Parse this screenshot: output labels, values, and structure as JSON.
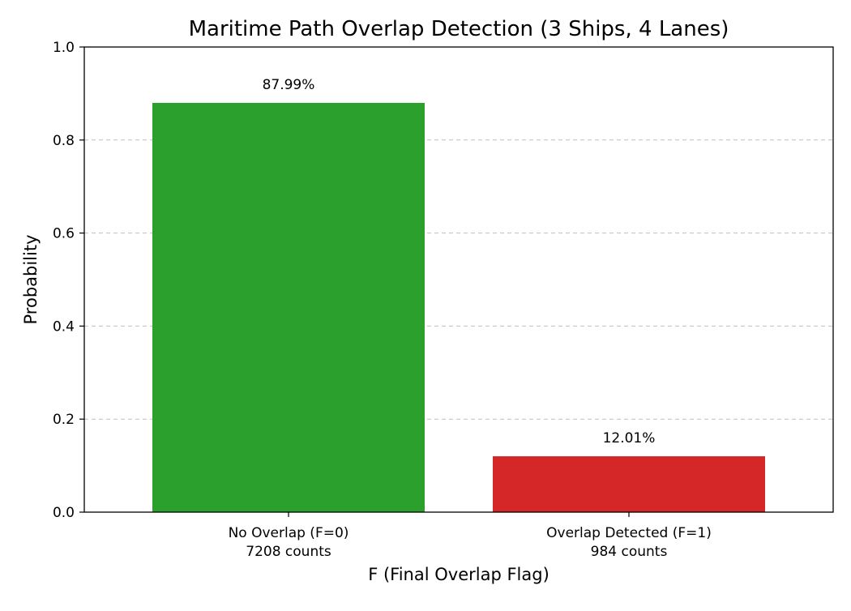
{
  "chart_data": {
    "type": "bar",
    "title": "Maritime Path Overlap Detection (3 Ships, 4 Lanes)",
    "xlabel": "F (Final Overlap Flag)",
    "ylabel": "Probability",
    "ylim": [
      0,
      1.0
    ],
    "yticks": [
      "0.0",
      "0.2",
      "0.4",
      "0.6",
      "0.8",
      "1.0"
    ],
    "ytick_values": [
      0,
      0.2,
      0.4,
      0.6,
      0.8,
      1.0
    ],
    "grid": "y-dashed",
    "categories": [
      {
        "label": "No Overlap (F=0)",
        "sublabel": "7208 counts",
        "value": 0.8799,
        "data_label": "87.99%",
        "color": "#2ca02c"
      },
      {
        "label": "Overlap Detected (F=1)",
        "sublabel": "984 counts",
        "value": 0.1201,
        "data_label": "12.01%",
        "color": "#d62728"
      }
    ]
  }
}
